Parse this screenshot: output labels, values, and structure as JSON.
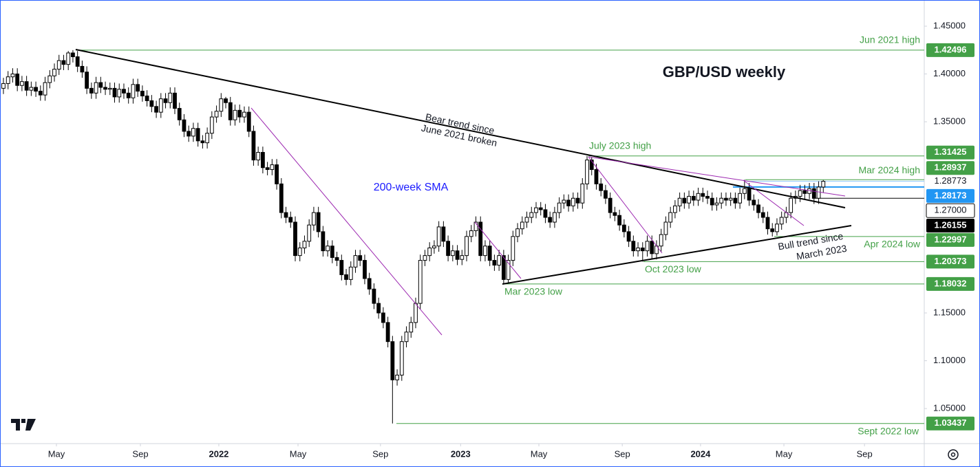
{
  "chart_data": {
    "type": "candlestick",
    "title": "GBP/USD weekly",
    "open": [
      1.385,
      1.39,
      1.397,
      1.4,
      1.388,
      1.392,
      1.383,
      1.386,
      1.382,
      1.378,
      1.391,
      1.398,
      1.405,
      1.414,
      1.41,
      1.422,
      1.418,
      1.408,
      1.402,
      1.385,
      1.38,
      1.391,
      1.386,
      1.384,
      1.385,
      1.376,
      1.384,
      1.38,
      1.375,
      1.389,
      1.382,
      1.377,
      1.372,
      1.366,
      1.36,
      1.374,
      1.37,
      1.38,
      1.364,
      1.352,
      1.34,
      1.335,
      1.343,
      1.33,
      1.328,
      1.338,
      1.355,
      1.361,
      1.374,
      1.37,
      1.352,
      1.362,
      1.355,
      1.36,
      1.34,
      1.31,
      1.318,
      1.302,
      1.3,
      1.305,
      1.285,
      1.255,
      1.25,
      1.245,
      1.21,
      1.218,
      1.225,
      1.242,
      1.255,
      1.235,
      1.215,
      1.22,
      1.208,
      1.205,
      1.19,
      1.185,
      1.198,
      1.21,
      1.205,
      1.186,
      1.175,
      1.16,
      1.15,
      1.14,
      1.12,
      1.08,
      1.085,
      1.12,
      1.13,
      1.14,
      1.16,
      1.205,
      1.21,
      1.218,
      1.22,
      1.24,
      1.225,
      1.21,
      1.215,
      1.206,
      1.21,
      1.23,
      1.236,
      1.245,
      1.21,
      1.22,
      1.205,
      1.2,
      1.21,
      1.185,
      1.205,
      1.23,
      1.238,
      1.245,
      1.25,
      1.255,
      1.26,
      1.258,
      1.25,
      1.245,
      1.255,
      1.265,
      1.268,
      1.262,
      1.27,
      1.265,
      1.285,
      1.31,
      1.3,
      1.285,
      1.278,
      1.27,
      1.255,
      1.252,
      1.242,
      1.235,
      1.225,
      1.215,
      1.218,
      1.215,
      1.225,
      1.212,
      1.22,
      1.232,
      1.245,
      1.255,
      1.262,
      1.27,
      1.265,
      1.272,
      1.268,
      1.275,
      1.272,
      1.27,
      1.263,
      1.265,
      1.27,
      1.268,
      1.27,
      1.265,
      1.275,
      1.28,
      1.268,
      1.263,
      1.255,
      1.25,
      1.238,
      1.235,
      1.243,
      1.25,
      1.255,
      1.27,
      1.272,
      1.278,
      1.275,
      1.28,
      1.27,
      1.2817
    ],
    "high": [
      1.396,
      1.403,
      1.406,
      1.406,
      1.398,
      1.398,
      1.392,
      1.392,
      1.388,
      1.397,
      1.404,
      1.411,
      1.42,
      1.42,
      1.424,
      1.42496,
      1.424,
      1.414,
      1.408,
      1.391,
      1.397,
      1.397,
      1.392,
      1.391,
      1.391,
      1.39,
      1.39,
      1.386,
      1.395,
      1.395,
      1.388,
      1.383,
      1.378,
      1.372,
      1.38,
      1.38,
      1.386,
      1.386,
      1.37,
      1.358,
      1.346,
      1.349,
      1.349,
      1.336,
      1.344,
      1.361,
      1.367,
      1.38,
      1.376,
      1.376,
      1.368,
      1.368,
      1.366,
      1.366,
      1.346,
      1.324,
      1.324,
      1.308,
      1.311,
      1.311,
      1.291,
      1.261,
      1.256,
      1.251,
      1.224,
      1.231,
      1.248,
      1.261,
      1.261,
      1.241,
      1.226,
      1.226,
      1.214,
      1.211,
      1.196,
      1.204,
      1.216,
      1.216,
      1.211,
      1.192,
      1.181,
      1.166,
      1.156,
      1.146,
      1.126,
      1.091,
      1.126,
      1.136,
      1.146,
      1.166,
      1.211,
      1.216,
      1.224,
      1.226,
      1.246,
      1.246,
      1.231,
      1.221,
      1.221,
      1.216,
      1.236,
      1.242,
      1.251,
      1.251,
      1.226,
      1.226,
      1.211,
      1.216,
      1.216,
      1.211,
      1.236,
      1.244,
      1.251,
      1.256,
      1.261,
      1.266,
      1.266,
      1.264,
      1.256,
      1.261,
      1.271,
      1.274,
      1.274,
      1.276,
      1.276,
      1.291,
      1.31425,
      1.313,
      1.306,
      1.291,
      1.284,
      1.276,
      1.261,
      1.258,
      1.248,
      1.241,
      1.231,
      1.224,
      1.224,
      1.231,
      1.231,
      1.226,
      1.238,
      1.251,
      1.261,
      1.268,
      1.276,
      1.276,
      1.278,
      1.278,
      1.281,
      1.281,
      1.278,
      1.276,
      1.271,
      1.276,
      1.276,
      1.276,
      1.276,
      1.281,
      1.28937,
      1.286,
      1.274,
      1.269,
      1.261,
      1.256,
      1.244,
      1.249,
      1.256,
      1.261,
      1.276,
      1.278,
      1.284,
      1.284,
      1.286,
      1.286,
      1.2877,
      1.289
    ],
    "low": [
      1.379,
      1.384,
      1.391,
      1.382,
      1.382,
      1.377,
      1.377,
      1.376,
      1.372,
      1.372,
      1.385,
      1.392,
      1.399,
      1.404,
      1.404,
      1.412,
      1.402,
      1.396,
      1.379,
      1.374,
      1.374,
      1.38,
      1.378,
      1.378,
      1.37,
      1.37,
      1.374,
      1.369,
      1.369,
      1.376,
      1.371,
      1.366,
      1.36,
      1.354,
      1.354,
      1.364,
      1.364,
      1.358,
      1.346,
      1.334,
      1.329,
      1.329,
      1.324,
      1.322,
      1.322,
      1.332,
      1.349,
      1.355,
      1.364,
      1.346,
      1.346,
      1.349,
      1.349,
      1.334,
      1.304,
      1.304,
      1.296,
      1.294,
      1.294,
      1.279,
      1.249,
      1.244,
      1.239,
      1.204,
      1.204,
      1.212,
      1.219,
      1.236,
      1.229,
      1.209,
      1.209,
      1.202,
      1.199,
      1.184,
      1.179,
      1.179,
      1.192,
      1.199,
      1.18,
      1.169,
      1.154,
      1.144,
      1.134,
      1.114,
      1.03437,
      1.074,
      1.079,
      1.114,
      1.124,
      1.134,
      1.154,
      1.199,
      1.204,
      1.212,
      1.214,
      1.219,
      1.204,
      1.204,
      1.2,
      1.2,
      1.204,
      1.224,
      1.23,
      1.204,
      1.204,
      1.199,
      1.194,
      1.194,
      1.18032,
      1.181,
      1.199,
      1.224,
      1.232,
      1.239,
      1.244,
      1.249,
      1.252,
      1.244,
      1.239,
      1.239,
      1.249,
      1.259,
      1.256,
      1.256,
      1.259,
      1.259,
      1.279,
      1.294,
      1.279,
      1.272,
      1.264,
      1.249,
      1.246,
      1.236,
      1.229,
      1.219,
      1.209,
      1.209,
      1.20373,
      1.209,
      1.206,
      1.206,
      1.214,
      1.226,
      1.239,
      1.249,
      1.256,
      1.259,
      1.259,
      1.262,
      1.262,
      1.266,
      1.264,
      1.257,
      1.257,
      1.259,
      1.262,
      1.262,
      1.259,
      1.259,
      1.269,
      1.262,
      1.257,
      1.249,
      1.244,
      1.232,
      1.22997,
      1.231,
      1.237,
      1.244,
      1.249,
      1.264,
      1.266,
      1.269,
      1.269,
      1.264,
      1.264,
      1.2757
    ],
    "close": [
      1.39,
      1.397,
      1.4,
      1.388,
      1.392,
      1.383,
      1.386,
      1.382,
      1.378,
      1.391,
      1.398,
      1.405,
      1.414,
      1.41,
      1.422,
      1.418,
      1.408,
      1.402,
      1.385,
      1.38,
      1.391,
      1.386,
      1.384,
      1.385,
      1.376,
      1.384,
      1.38,
      1.375,
      1.389,
      1.382,
      1.377,
      1.372,
      1.366,
      1.36,
      1.374,
      1.37,
      1.38,
      1.364,
      1.352,
      1.34,
      1.335,
      1.343,
      1.33,
      1.328,
      1.338,
      1.355,
      1.361,
      1.374,
      1.37,
      1.352,
      1.362,
      1.355,
      1.36,
      1.34,
      1.31,
      1.318,
      1.302,
      1.3,
      1.305,
      1.285,
      1.255,
      1.25,
      1.245,
      1.21,
      1.218,
      1.225,
      1.242,
      1.255,
      1.235,
      1.215,
      1.22,
      1.208,
      1.205,
      1.19,
      1.185,
      1.198,
      1.21,
      1.205,
      1.186,
      1.175,
      1.16,
      1.15,
      1.14,
      1.12,
      1.08,
      1.085,
      1.12,
      1.13,
      1.14,
      1.16,
      1.205,
      1.21,
      1.218,
      1.22,
      1.24,
      1.225,
      1.21,
      1.215,
      1.206,
      1.21,
      1.23,
      1.236,
      1.245,
      1.21,
      1.22,
      1.205,
      1.2,
      1.21,
      1.185,
      1.205,
      1.23,
      1.238,
      1.245,
      1.25,
      1.255,
      1.26,
      1.258,
      1.25,
      1.245,
      1.255,
      1.265,
      1.268,
      1.262,
      1.27,
      1.265,
      1.285,
      1.31,
      1.3,
      1.285,
      1.278,
      1.27,
      1.255,
      1.252,
      1.242,
      1.235,
      1.225,
      1.215,
      1.218,
      1.215,
      1.225,
      1.212,
      1.22,
      1.232,
      1.245,
      1.255,
      1.262,
      1.27,
      1.265,
      1.272,
      1.268,
      1.275,
      1.272,
      1.27,
      1.263,
      1.265,
      1.27,
      1.268,
      1.27,
      1.265,
      1.275,
      1.28,
      1.268,
      1.263,
      1.255,
      1.25,
      1.238,
      1.235,
      1.243,
      1.25,
      1.255,
      1.27,
      1.272,
      1.278,
      1.275,
      1.28,
      1.27,
      1.2817,
      1.2877
    ],
    "up_color": "#ffffff",
    "down_color": "#000000",
    "xlim": [
      -0.74,
      198.8
    ],
    "xticks": [
      {
        "value": 11.44,
        "label": "May"
      },
      {
        "value": 29.57,
        "label": "Sep"
      },
      {
        "value": 46.5,
        "label": "2022"
      },
      {
        "value": 63.6,
        "label": "May"
      },
      {
        "value": 81.4,
        "label": "Sep"
      },
      {
        "value": 98.7,
        "label": "2023"
      },
      {
        "value": 115.6,
        "label": "May"
      },
      {
        "value": 133.6,
        "label": "Sep"
      },
      {
        "value": 150.5,
        "label": "2024"
      },
      {
        "value": 168.5,
        "label": "May"
      },
      {
        "value": 185.9,
        "label": "Sep"
      }
    ],
    "ylim": [
      1.0133,
      1.4745
    ],
    "yticks": [
      {
        "value": 1.45,
        "label": "1.45000"
      },
      {
        "value": 1.4,
        "label": "1.40000"
      },
      {
        "value": 1.35,
        "label": "1.35000"
      },
      {
        "value": 1.15,
        "label": "1.15000"
      },
      {
        "value": 1.1,
        "label": "1.10000"
      },
      {
        "value": 1.05,
        "label": "1.05000"
      }
    ],
    "levels": [
      {
        "value": 1.42496,
        "text": "Jun 2021 high",
        "color": "#43a047"
      },
      {
        "value": 1.31425,
        "text": "July 2023 high",
        "color": "#43a047"
      },
      {
        "value": 1.28937,
        "text": "Mar 2024 high",
        "color": "#43a047"
      },
      {
        "value": 1.28773,
        "color": "#90caf9"
      },
      {
        "value": 1.28173,
        "color": "#2196f3"
      },
      {
        "value": 1.27,
        "label": "1.27000",
        "color": "#000000"
      },
      {
        "value": 1.26155,
        "color": "#000000"
      },
      {
        "value": 1.22997,
        "text": "Apr 2024 low",
        "color": "#43a047"
      },
      {
        "value": 1.20373,
        "text": "Oct 2023 low",
        "color": "#43a047"
      },
      {
        "value": 1.18032,
        "text": "Mar 2023 low",
        "color": "#43a047"
      },
      {
        "value": 1.03437,
        "text": "Sept 2022 low",
        "color": "#43a047"
      }
    ],
    "annotations": [
      "200-week SMA",
      "Bear trend since",
      "June 2021 broken",
      "Bull trend since",
      "March 2023"
    ]
  }
}
